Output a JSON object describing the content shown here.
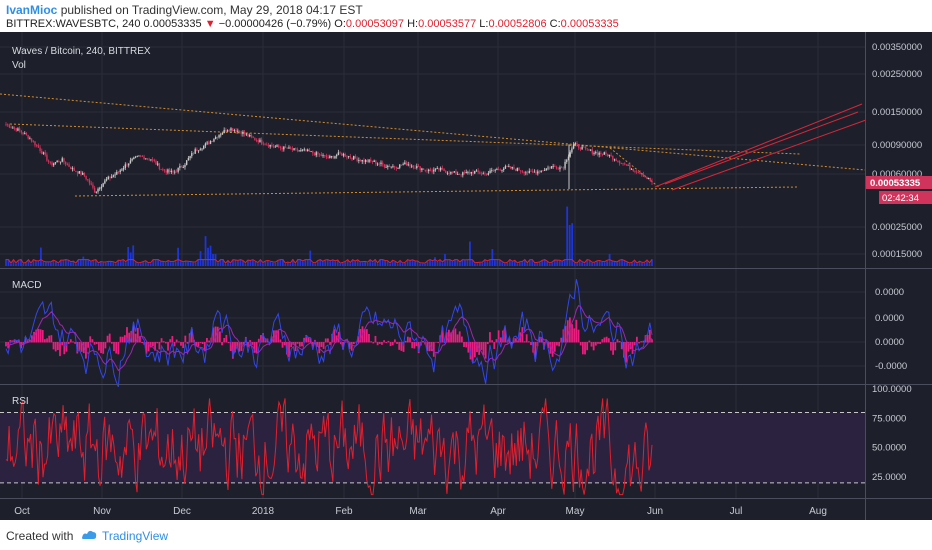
{
  "header": {
    "author": "IvanMioc",
    "published": "published on TradingView.com, May 29, 2018 04:17 EST",
    "symbol": "BITTREX:WAVESBTC, 240",
    "last": "0.00053335",
    "change_arrow": "▼",
    "change": "−0.00000426 (−0.79%)",
    "o_label": "O:",
    "o_value": "0.00053097",
    "h_label": "H:",
    "h_value": "0.00053577",
    "l_label": "L:",
    "l_value": "0.00052806",
    "c_label": "C:",
    "c_value": "0.00053335"
  },
  "footer": {
    "created_with": "Created with",
    "brand": "TradingView"
  },
  "colors": {
    "background": "#1d1f2a",
    "grid": "#2a2d3a",
    "candle_up": "#c9c9c9",
    "candle_down": "#d0335b",
    "trend_orange": "#d28c2e",
    "channel_red": "#d8263a",
    "volume_blue": "#1e35d8",
    "volume_ma": "#e0202e",
    "macd_hist": "#e91e7e",
    "macd_line": "#3347e8",
    "macd_signal": "#9c27b0",
    "rsi_line": "#e0202e",
    "rsi_band": "#2b2240",
    "rsi_bounds": "#c8c8c8"
  },
  "chart_data": [
    {
      "type": "candlestick",
      "title": "Waves / Bitcoin, 240, BITTREX",
      "sub_label": "Vol",
      "x_ticks": [
        "Oct",
        "Nov",
        "Dec",
        "2018",
        "Feb",
        "Mar",
        "Apr",
        "May",
        "Jun",
        "Jul",
        "Aug"
      ],
      "y_ticks": [
        "0.00350000",
        "0.00250000",
        "0.00150000",
        "0.00090000",
        "0.00060000",
        "0.00025000",
        "0.00015000"
      ],
      "last_price_label": "0.00053335",
      "countdown_label": "02:42:34",
      "close_series": [
        0.00125,
        0.00116,
        0.00104,
        0.00087,
        0.00069,
        0.00074,
        0.00064,
        0.00059,
        0.00046,
        0.00055,
        0.00061,
        0.00071,
        0.00078,
        0.00075,
        0.00064,
        0.00061,
        0.00069,
        0.00085,
        0.00093,
        0.00106,
        0.00118,
        0.00113,
        0.00103,
        0.00096,
        0.0009,
        0.00088,
        0.00085,
        0.00084,
        0.0008,
        0.00076,
        0.00081,
        0.00077,
        0.00073,
        0.00072,
        0.00068,
        0.00067,
        0.0007,
        0.00066,
        0.00063,
        0.00064,
        0.00061,
        0.0006,
        0.00062,
        0.0006,
        0.00064,
        0.00066,
        0.00064,
        0.00061,
        0.00063,
        0.00067,
        0.00066,
        0.00093,
        0.00086,
        0.00082,
        0.0008,
        0.00073,
        0.00066,
        0.00061,
        0.00053
      ]
    },
    {
      "type": "histogram+line",
      "title": "MACD",
      "y_ticks": [
        "0.0000",
        "0.0000",
        "0.0000",
        "-0.0000"
      ]
    },
    {
      "type": "line",
      "title": "RSI",
      "y_ticks": [
        "100.0000",
        "75.0000",
        "50.0000",
        "25.0000"
      ],
      "upper_band": 80,
      "lower_band": 20,
      "ylim": [
        0,
        100
      ]
    }
  ]
}
